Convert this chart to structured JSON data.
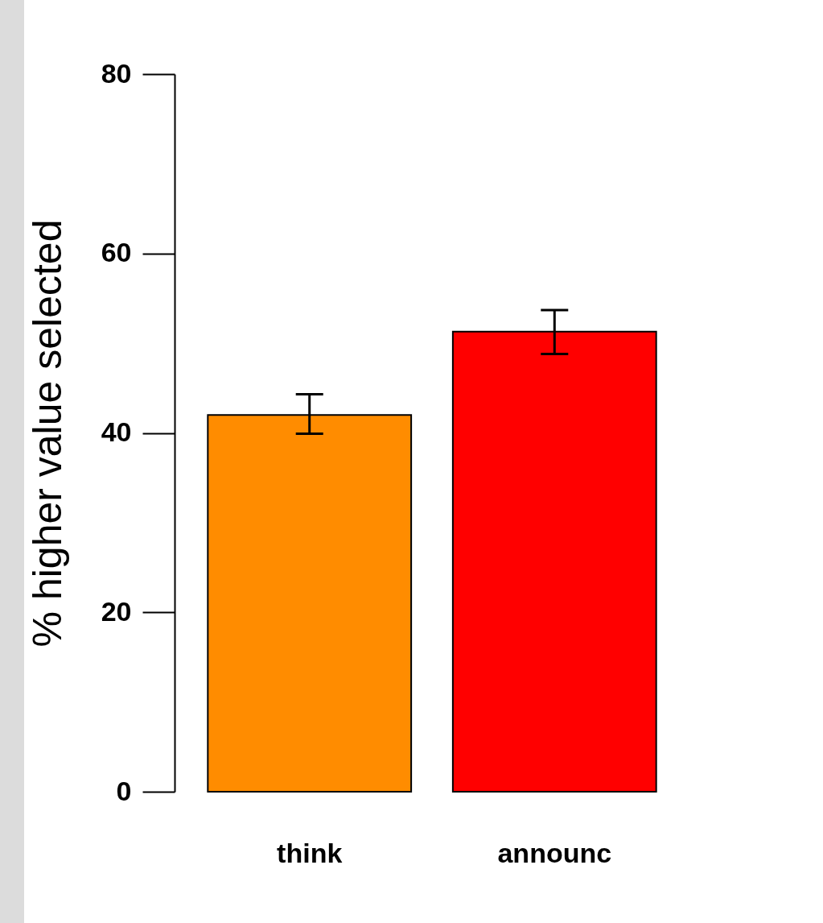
{
  "chart_data": {
    "type": "bar",
    "ylabel": "% higher value selected",
    "categories": [
      "think",
      "announc"
    ],
    "values": [
      42.0,
      51.3
    ],
    "errors": [
      [
        39.9,
        44.3
      ],
      [
        48.8,
        53.7
      ]
    ],
    "colors": [
      "#ff8c00",
      "#ff0000"
    ],
    "ylim": [
      0,
      80
    ],
    "yticks": [
      0,
      20,
      40,
      60,
      80
    ],
    "grid": false
  }
}
